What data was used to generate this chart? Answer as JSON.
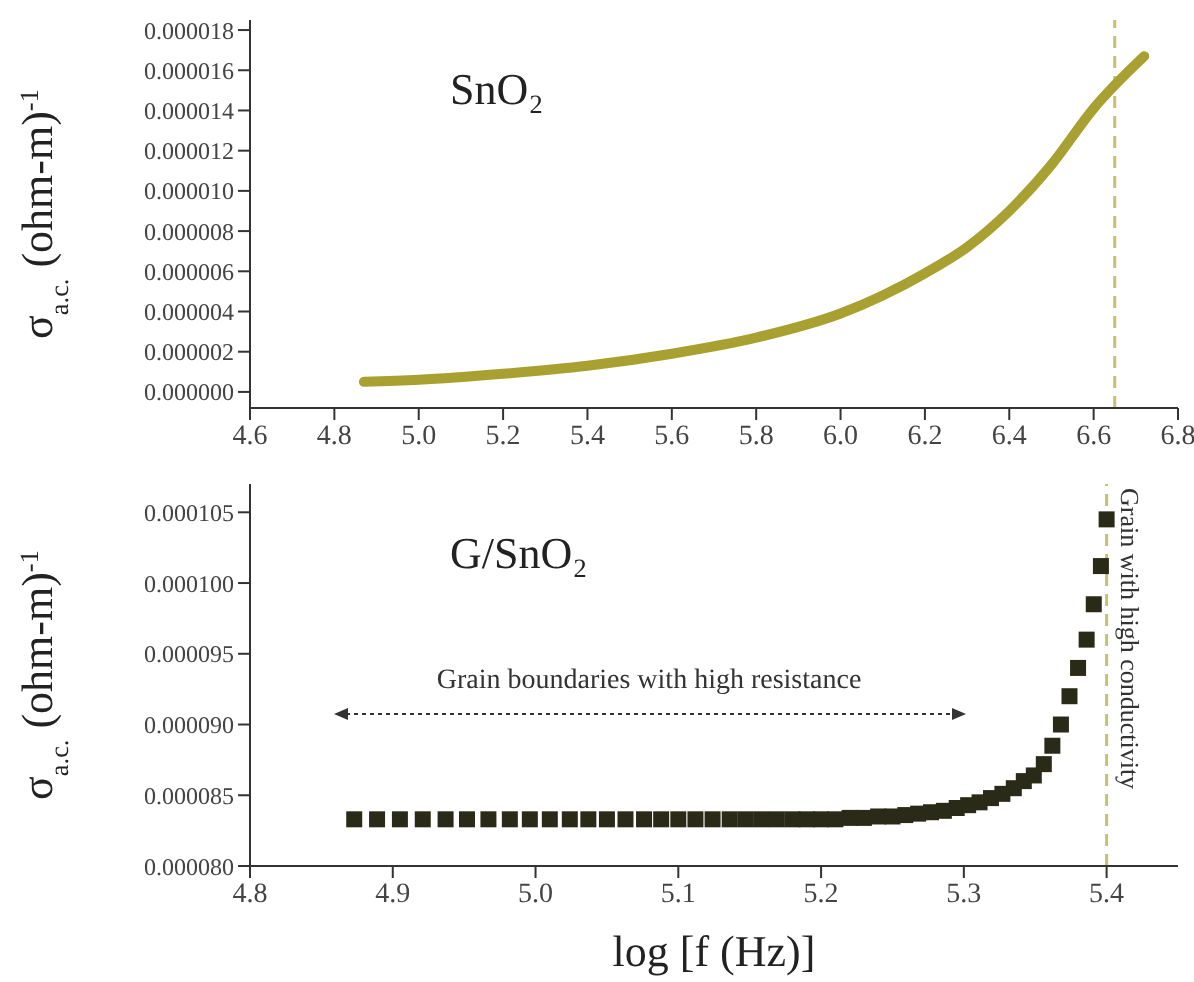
{
  "chart_data": [
    {
      "type": "line",
      "title": "SnO₂",
      "ylabel": "σ$_{a.c.}$ (ohm-m)$^{-1}$",
      "marker": "none",
      "line_style": "solid",
      "series": [
        {
          "color": "#a8a030",
          "x": [
            4.87,
            5.0,
            5.2,
            5.4,
            5.6,
            5.8,
            6.0,
            6.1,
            6.2,
            6.3,
            6.4,
            6.5,
            6.6,
            6.72
          ],
          "values": [
            5e-07,
            6e-07,
            9e-07,
            1.3e-06,
            1.9e-06,
            2.7e-06,
            3.9e-06,
            4.8e-06,
            5.9e-06,
            7.2e-06,
            9e-06,
            1.13e-05,
            1.41e-05,
            1.67e-05
          ]
        }
      ],
      "xlim": [
        4.6,
        6.8
      ],
      "xticks": [
        {
          "value": 4.6,
          "label": "4.6"
        },
        {
          "value": 4.8,
          "label": "4.8"
        },
        {
          "value": 5.0,
          "label": "5.0"
        },
        {
          "value": 5.2,
          "label": "5.2"
        },
        {
          "value": 5.4,
          "label": "5.4"
        },
        {
          "value": 5.6,
          "label": "5.6"
        },
        {
          "value": 5.8,
          "label": "5.8"
        },
        {
          "value": 6.0,
          "label": "6.0"
        },
        {
          "value": 6.2,
          "label": "6.2"
        },
        {
          "value": 6.4,
          "label": "6.4"
        },
        {
          "value": 6.6,
          "label": "6.6"
        },
        {
          "value": 6.8,
          "label": "6.8"
        }
      ],
      "ylim": [
        -8e-07,
        1.85e-05
      ],
      "yticks": [
        {
          "value": 0,
          "label": "0.000000"
        },
        {
          "value": 2e-06,
          "label": "0.000002"
        },
        {
          "value": 4e-06,
          "label": "0.000004"
        },
        {
          "value": 6e-06,
          "label": "0.000006"
        },
        {
          "value": 8e-06,
          "label": "0.000008"
        },
        {
          "value": 1e-05,
          "label": "0.000010"
        },
        {
          "value": 1.2e-05,
          "label": "0.000012"
        },
        {
          "value": 1.4e-05,
          "label": "0.000014"
        },
        {
          "value": 1.6e-05,
          "label": "0.000016"
        },
        {
          "value": 1.8e-05,
          "label": "0.000018"
        }
      ],
      "ref_lines": [
        {
          "axis": "x",
          "value": 6.65,
          "color": "#c8c070",
          "line_style": "dashed"
        }
      ],
      "grid": false
    },
    {
      "type": "scatter",
      "title": "G/SnO₂",
      "xlabel": "log [f (Hz)]",
      "ylabel": "σ$_{a.c.}$ (ohm-m)$^{-1}$",
      "marker": "square",
      "series": [
        {
          "color": "#2a2a18",
          "x": [
            4.873,
            4.889,
            4.905,
            4.921,
            4.937,
            4.952,
            4.967,
            4.982,
            4.996,
            5.01,
            5.024,
            5.037,
            5.05,
            5.063,
            5.076,
            5.088,
            5.1,
            5.112,
            5.124,
            5.136,
            5.147,
            5.158,
            5.169,
            5.18,
            5.19,
            5.2,
            5.21,
            5.22,
            5.23,
            5.24,
            5.25,
            5.259,
            5.268,
            5.277,
            5.286,
            5.295,
            5.303,
            5.311,
            5.319,
            5.327,
            5.335,
            5.342,
            5.349,
            5.356,
            5.362,
            5.368,
            5.374,
            5.38,
            5.386,
            5.391,
            5.396,
            5.4
          ],
          "values": [
            8.33e-05,
            8.33e-05,
            8.33e-05,
            8.33e-05,
            8.33e-05,
            8.33e-05,
            8.33e-05,
            8.33e-05,
            8.33e-05,
            8.33e-05,
            8.33e-05,
            8.33e-05,
            8.33e-05,
            8.33e-05,
            8.33e-05,
            8.33e-05,
            8.33e-05,
            8.33e-05,
            8.33e-05,
            8.33e-05,
            8.33e-05,
            8.33e-05,
            8.33e-05,
            8.33e-05,
            8.33e-05,
            8.33e-05,
            8.33e-05,
            8.34e-05,
            8.34e-05,
            8.35e-05,
            8.35e-05,
            8.36e-05,
            8.37e-05,
            8.38e-05,
            8.39e-05,
            8.41e-05,
            8.43e-05,
            8.45e-05,
            8.48e-05,
            8.51e-05,
            8.55e-05,
            8.6e-05,
            8.64e-05,
            8.72e-05,
            8.85e-05,
            9e-05,
            9.2e-05,
            9.4e-05,
            9.6e-05,
            9.85e-05,
            0.0001012,
            0.0001045
          ]
        }
      ],
      "xlim": [
        4.8,
        5.45
      ],
      "xticks": [
        {
          "value": 4.8,
          "label": "4.8"
        },
        {
          "value": 4.9,
          "label": "4.9"
        },
        {
          "value": 5.0,
          "label": "5.0"
        },
        {
          "value": 5.1,
          "label": "5.1"
        },
        {
          "value": 5.2,
          "label": "5.2"
        },
        {
          "value": 5.3,
          "label": "5.3"
        },
        {
          "value": 5.4,
          "label": "5.4"
        }
      ],
      "ylim": [
        8e-05,
        0.000107
      ],
      "yticks": [
        {
          "value": 8e-05,
          "label": "0.000080"
        },
        {
          "value": 8.5e-05,
          "label": "0.000085"
        },
        {
          "value": 9e-05,
          "label": "0.000090"
        },
        {
          "value": 9.5e-05,
          "label": "0.000095"
        },
        {
          "value": 0.0001,
          "label": "0.000100"
        },
        {
          "value": 0.000105,
          "label": "0.000105"
        }
      ],
      "ref_lines": [
        {
          "axis": "x",
          "value": 5.4,
          "color": "#c8c070",
          "line_style": "dashed"
        }
      ],
      "annotations": [
        "Grain boundaries with high resistance",
        "Grain with high conductivity"
      ],
      "grid": false
    }
  ]
}
